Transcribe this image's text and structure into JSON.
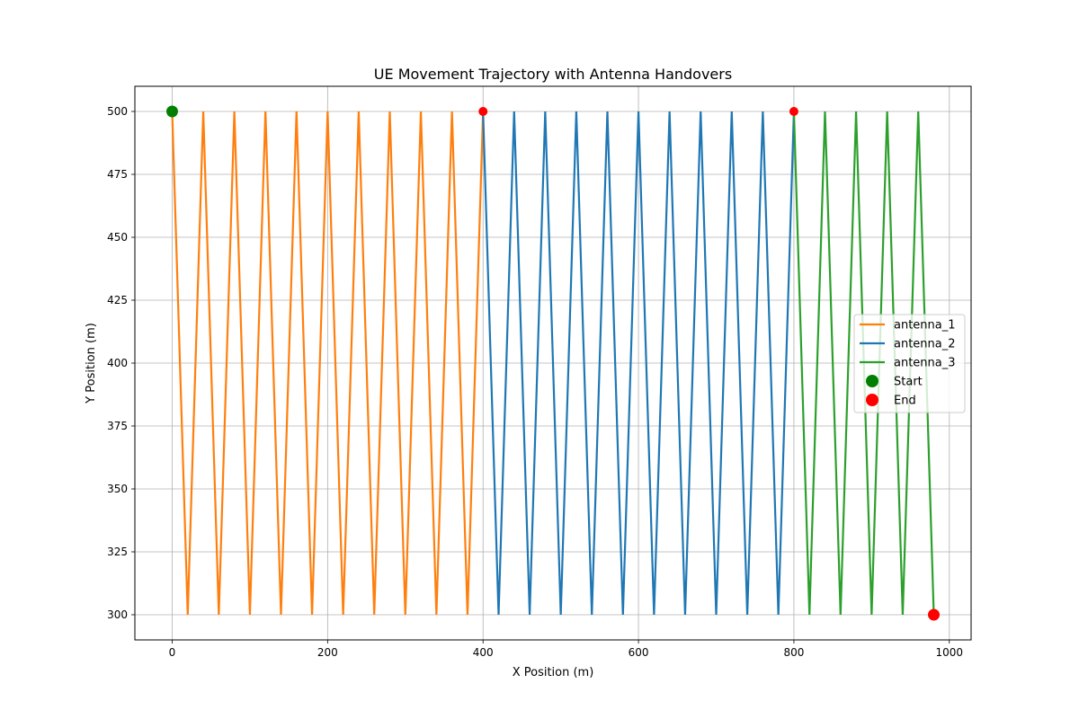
{
  "chart_data": {
    "type": "line",
    "title": "UE Movement Trajectory with Antenna Handovers",
    "xlabel": "X Position (m)",
    "ylabel": "Y Position (m)",
    "xlim": [
      -48,
      1028
    ],
    "ylim": [
      290,
      510
    ],
    "xticks": [
      0,
      200,
      400,
      600,
      800,
      1000
    ],
    "yticks": [
      300,
      325,
      350,
      375,
      400,
      425,
      450,
      475,
      500
    ],
    "grid": true,
    "legend_position": "center-right",
    "series": [
      {
        "name": "antenna_1",
        "color": "#ff7f0e",
        "x": [
          0,
          20,
          40,
          60,
          80,
          100,
          120,
          140,
          160,
          180,
          200,
          220,
          240,
          260,
          280,
          300,
          320,
          340,
          360,
          380,
          400
        ],
        "y": [
          500,
          300,
          500,
          300,
          500,
          300,
          500,
          300,
          500,
          300,
          500,
          300,
          500,
          300,
          500,
          300,
          500,
          300,
          500,
          300,
          500
        ]
      },
      {
        "name": "antenna_2",
        "color": "#1f77b4",
        "x": [
          400,
          420,
          440,
          460,
          480,
          500,
          520,
          540,
          560,
          580,
          600,
          620,
          640,
          660,
          680,
          700,
          720,
          740,
          760,
          780,
          800
        ],
        "y": [
          500,
          300,
          500,
          300,
          500,
          300,
          500,
          300,
          500,
          300,
          500,
          300,
          500,
          300,
          500,
          300,
          500,
          300,
          500,
          300,
          500
        ]
      },
      {
        "name": "antenna_3",
        "color": "#2ca02c",
        "x": [
          800,
          820,
          840,
          860,
          880,
          900,
          920,
          940,
          960,
          980
        ],
        "y": [
          500,
          300,
          500,
          300,
          500,
          300,
          500,
          300,
          500,
          300
        ]
      }
    ],
    "markers": [
      {
        "name": "Start",
        "color": "#008000",
        "x": 0,
        "y": 500,
        "in_legend": true,
        "size": "large"
      },
      {
        "name": "End",
        "color": "#ff0000",
        "x": 980,
        "y": 300,
        "in_legend": true,
        "size": "large"
      },
      {
        "name": "",
        "color": "#ff0000",
        "x": 400,
        "y": 500,
        "in_legend": false,
        "size": "small"
      },
      {
        "name": "",
        "color": "#ff0000",
        "x": 800,
        "y": 500,
        "in_legend": false,
        "size": "small"
      }
    ]
  }
}
